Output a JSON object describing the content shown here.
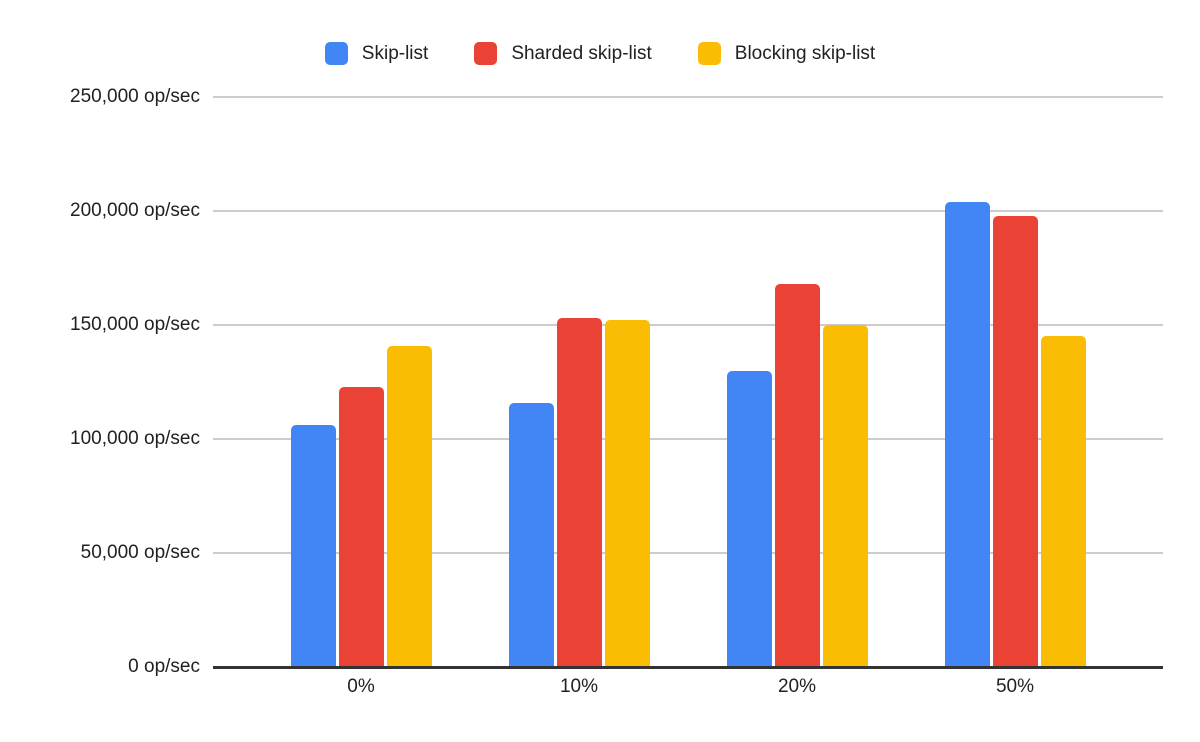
{
  "colors": {
    "background": "#ffffff",
    "gridline": "#cccccc",
    "baseline": "#333333",
    "text": "#202124"
  },
  "chart_data": {
    "type": "bar",
    "title": "",
    "categories": [
      "0%",
      "10%",
      "20%",
      "50%"
    ],
    "series": [
      {
        "name": "Skip-list",
        "color": "#4285F4",
        "values": [
          106000,
          116000,
          130000,
          204000
        ]
      },
      {
        "name": "Sharded skip-list",
        "color": "#EA4335",
        "values": [
          123000,
          153000,
          168000,
          198000
        ]
      },
      {
        "name": "Blocking skip-list",
        "color": "#FBBC04",
        "values": [
          141000,
          152000,
          150000,
          145000
        ]
      }
    ],
    "ylim": [
      0,
      250000
    ],
    "ytick_step": 50000,
    "yticks": [
      {
        "value": 0,
        "label": "0 op/sec"
      },
      {
        "value": 50000,
        "label": "50,000 op/sec"
      },
      {
        "value": 100000,
        "label": "100,000 op/sec"
      },
      {
        "value": 150000,
        "label": "150,000 op/sec"
      },
      {
        "value": 200000,
        "label": "200,000 op/sec"
      },
      {
        "value": 250000,
        "label": "250,000 op/sec"
      }
    ],
    "grid": true,
    "legend_position": "top"
  }
}
